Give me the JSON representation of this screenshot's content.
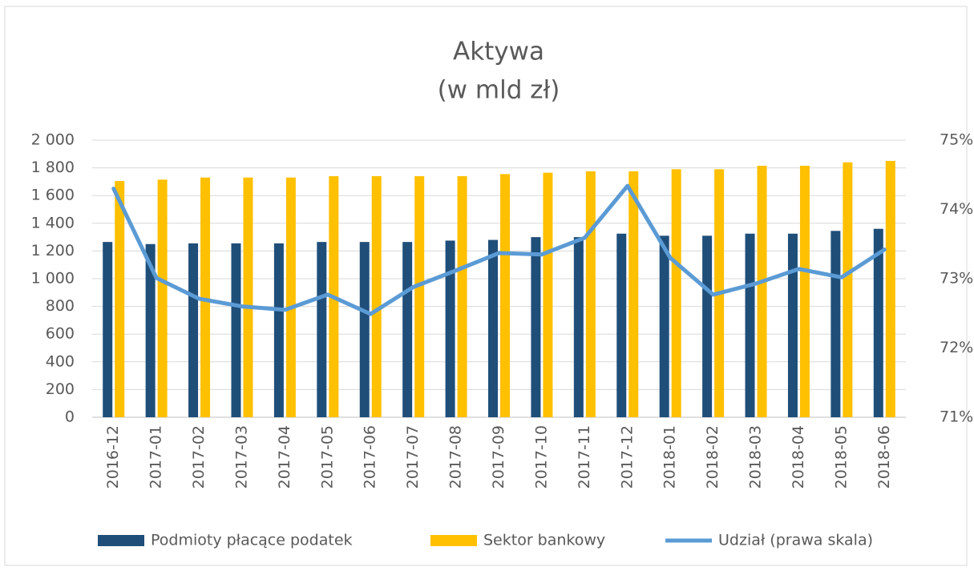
{
  "chart_data": {
    "type": "bar_line",
    "title": "Aktywa",
    "subtitle": "(w mld zł)",
    "categories": [
      "2016-12",
      "2017-01",
      "2017-02",
      "2017-03",
      "2017-04",
      "2017-05",
      "2017-06",
      "2017-07",
      "2017-08",
      "2017-09",
      "2017-10",
      "2017-11",
      "2017-12",
      "2018-01",
      "2018-02",
      "2018-03",
      "2018-04",
      "2018-05",
      "2018-06"
    ],
    "series": [
      {
        "name": "Podmioty płacące podatek",
        "color": "#1f4e79",
        "type": "bar",
        "values": [
          1265,
          1250,
          1255,
          1255,
          1255,
          1265,
          1265,
          1265,
          1275,
          1280,
          1300,
          1300,
          1325,
          1310,
          1310,
          1325,
          1325,
          1345,
          1360
        ]
      },
      {
        "name": "Sektor bankowy",
        "color": "#ffc000",
        "type": "bar",
        "values": [
          1705,
          1715,
          1730,
          1730,
          1730,
          1740,
          1740,
          1740,
          1740,
          1755,
          1765,
          1775,
          1775,
          1790,
          1790,
          1815,
          1815,
          1840,
          1850
        ]
      },
      {
        "name": "Udział (prawa skala)",
        "color": "#5b9bd5",
        "type": "line",
        "axis": "y2",
        "values": [
          74.3,
          73.01,
          72.71,
          72.6,
          72.55,
          72.77,
          72.49,
          72.88,
          73.12,
          73.37,
          73.35,
          73.59,
          74.34,
          73.3,
          72.77,
          72.93,
          73.14,
          73.02,
          73.42
        ]
      }
    ],
    "ylim": [
      0,
      2000
    ],
    "yticks": [
      0,
      200,
      400,
      600,
      800,
      {
        "value": 1000,
        "label": "1 000"
      },
      {
        "value": 1200,
        "label": "1 200"
      },
      {
        "value": 1400,
        "label": "1 400"
      },
      {
        "value": 1600,
        "label": "1 600"
      },
      {
        "value": 1800,
        "label": "1 800"
      },
      {
        "value": 2000,
        "label": "2 000"
      }
    ],
    "y2lim": [
      71,
      75
    ],
    "y2ticks": [
      {
        "value": 71,
        "label": "71%"
      },
      {
        "value": 72,
        "label": "72%"
      },
      {
        "value": 73,
        "label": "73%"
      },
      {
        "value": 74,
        "label": "74%"
      },
      {
        "value": 75,
        "label": "75%"
      }
    ],
    "grid": true,
    "legend": "bottom"
  }
}
